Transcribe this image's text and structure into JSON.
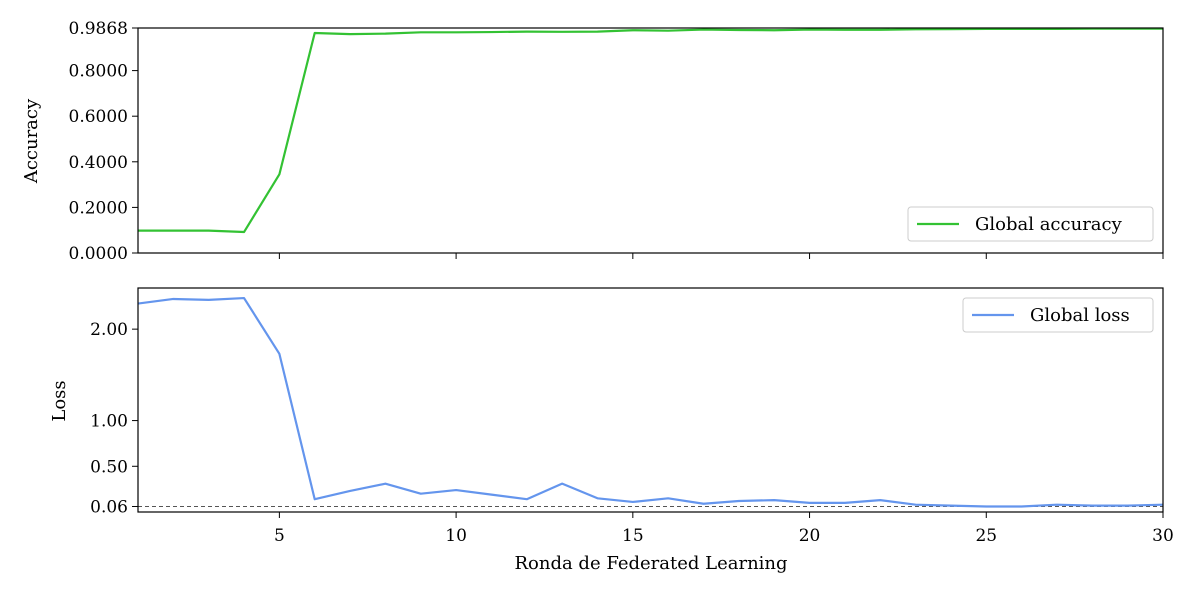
{
  "chart_data": [
    {
      "type": "line",
      "ylabel": "Accuracy",
      "ylim": [
        0.0,
        0.9868
      ],
      "yticks": [
        "0.0000",
        "0.2000",
        "0.4000",
        "0.6000",
        "0.8000",
        "0.9868"
      ],
      "ytick_values": [
        0.0,
        0.2,
        0.4,
        0.6,
        0.8,
        0.9868
      ],
      "reference_line": 0.9868,
      "legend_position": "lower-right",
      "series": [
        {
          "name": "Global accuracy",
          "color": "#33c233",
          "x": [
            1,
            2,
            3,
            4,
            5,
            6,
            7,
            8,
            9,
            10,
            11,
            12,
            13,
            14,
            15,
            16,
            17,
            18,
            19,
            20,
            21,
            22,
            23,
            24,
            25,
            26,
            27,
            28,
            29,
            30
          ],
          "values": [
            0.098,
            0.098,
            0.098,
            0.092,
            0.345,
            0.965,
            0.96,
            0.962,
            0.968,
            0.968,
            0.969,
            0.971,
            0.97,
            0.971,
            0.977,
            0.975,
            0.98,
            0.978,
            0.977,
            0.98,
            0.979,
            0.979,
            0.981,
            0.982,
            0.983,
            0.983,
            0.983,
            0.984,
            0.984,
            0.984
          ]
        }
      ]
    },
    {
      "type": "line",
      "xlabel": "Ronda de Federated Learning",
      "ylabel": "Loss",
      "xlim": [
        1,
        30
      ],
      "xticks": [
        5,
        10,
        15,
        20,
        25,
        30
      ],
      "ylim": [
        0.0,
        2.45
      ],
      "yticks": [
        "0.06",
        "0.50",
        "1.00",
        "2.00"
      ],
      "ytick_values": [
        0.06,
        0.5,
        1.0,
        2.0
      ],
      "reference_line": 0.06,
      "legend_position": "upper-right",
      "series": [
        {
          "name": "Global loss",
          "color": "#6495ed",
          "x": [
            1,
            2,
            3,
            4,
            5,
            6,
            7,
            8,
            9,
            10,
            11,
            12,
            13,
            14,
            15,
            16,
            17,
            18,
            19,
            20,
            21,
            22,
            23,
            24,
            25,
            26,
            27,
            28,
            29,
            30
          ],
          "values": [
            2.28,
            2.33,
            2.32,
            2.34,
            1.73,
            0.14,
            0.23,
            0.31,
            0.2,
            0.24,
            0.19,
            0.14,
            0.31,
            0.15,
            0.11,
            0.15,
            0.09,
            0.12,
            0.13,
            0.1,
            0.1,
            0.13,
            0.08,
            0.07,
            0.06,
            0.06,
            0.08,
            0.07,
            0.07,
            0.08
          ]
        }
      ]
    }
  ]
}
